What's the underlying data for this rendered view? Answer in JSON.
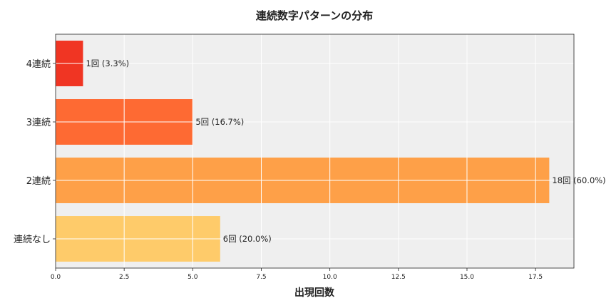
{
  "chart_data": {
    "type": "bar",
    "orientation": "horizontal",
    "title": "連続数字パターンの分布",
    "xlabel": "出現回数",
    "ylabel": "",
    "categories": [
      "4連続",
      "3連続",
      "2連続",
      "連続なし"
    ],
    "values": [
      1,
      5,
      18,
      6
    ],
    "data_labels": [
      "1回 (3.3%)",
      "5回 (16.7%)",
      "18回 (60.0%)",
      "6回 (20.0%)"
    ],
    "colors": [
      "#f03523",
      "#fe6a33",
      "#fea048",
      "#fecb6a"
    ],
    "xlim": [
      0,
      18.9
    ],
    "xticks": [
      0.0,
      2.5,
      5.0,
      7.5,
      10.0,
      12.5,
      15.0,
      17.5
    ],
    "xtick_labels": [
      "0.0",
      "2.5",
      "5.0",
      "7.5",
      "10.0",
      "12.5",
      "15.0",
      "17.5"
    ],
    "grid": true,
    "background": "#efefef"
  }
}
